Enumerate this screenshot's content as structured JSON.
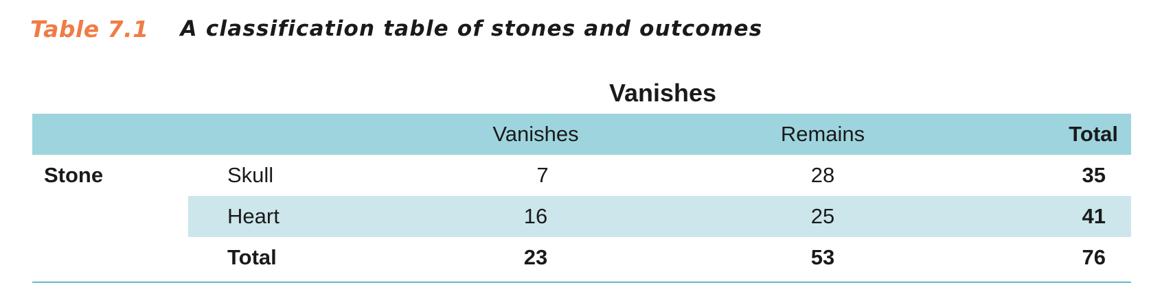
{
  "caption": {
    "label": "Table 7.1",
    "title": "A classification table of stones and outcomes"
  },
  "table": {
    "spanner": "Vanishes",
    "columns": [
      "Vanishes",
      "Remains",
      "Total"
    ],
    "row_group_label": "Stone",
    "rows": [
      {
        "label": "Skull",
        "values": [
          "7",
          "28",
          "35"
        ]
      },
      {
        "label": "Heart",
        "values": [
          "16",
          "25",
          "41"
        ]
      },
      {
        "label": "Total",
        "values": [
          "23",
          "53",
          "76"
        ]
      }
    ]
  },
  "colors": {
    "caption_label": "#f07c45",
    "header_band": "#9ed4de",
    "alt_row_band": "#cce6eb",
    "rule": "#5fbcc6"
  }
}
